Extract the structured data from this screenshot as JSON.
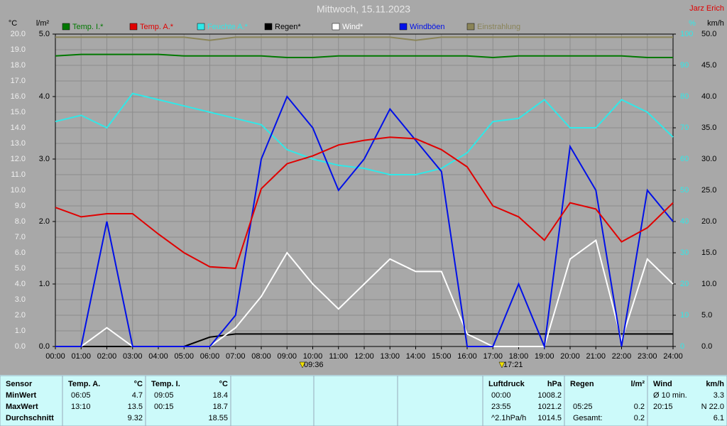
{
  "chart_data": {
    "type": "line",
    "title": "Mittwoch, 15.11.2023",
    "author": "Jarz Erich",
    "axis_units": {
      "y": "°C",
      "y4": "l/m²",
      "y2": "%",
      "y3": "km/h"
    },
    "x": [
      0,
      1,
      2,
      3,
      4,
      5,
      6,
      7,
      8,
      9,
      10,
      11,
      12,
      13,
      14,
      15,
      16,
      17,
      18,
      19,
      20,
      21,
      22,
      23,
      24
    ],
    "xlim": [
      0,
      24
    ],
    "xticks": [
      {
        "value": 0,
        "label": "00:00"
      },
      {
        "value": 1,
        "label": "01:00"
      },
      {
        "value": 2,
        "label": "02:00"
      },
      {
        "value": 3,
        "label": "03:00"
      },
      {
        "value": 4,
        "label": "04:00"
      },
      {
        "value": 5,
        "label": "05:00"
      },
      {
        "value": 6,
        "label": "06:00"
      },
      {
        "value": 7,
        "label": "07:00"
      },
      {
        "value": 8,
        "label": "08:00"
      },
      {
        "value": 9,
        "label": "09:00"
      },
      {
        "value": 10,
        "label": "10:00"
      },
      {
        "value": 11,
        "label": "11:00"
      },
      {
        "value": 12,
        "label": "12:00"
      },
      {
        "value": 13,
        "label": "13:00"
      },
      {
        "value": 14,
        "label": "14:00"
      },
      {
        "value": 15,
        "label": "15:00"
      },
      {
        "value": 16,
        "label": "16:00"
      },
      {
        "value": 17,
        "label": "17:00"
      },
      {
        "value": 18,
        "label": "18:00"
      },
      {
        "value": 19,
        "label": "19:00"
      },
      {
        "value": 20,
        "label": "20:00"
      },
      {
        "value": 21,
        "label": "21:00"
      },
      {
        "value": 22,
        "label": "22:00"
      },
      {
        "value": 23,
        "label": "23:00"
      },
      {
        "value": 24,
        "label": "24:00"
      }
    ],
    "ylim": [
      0,
      20
    ],
    "yticks": [
      {
        "value": 0,
        "label": "0.0"
      },
      {
        "value": 1,
        "label": "1.0"
      },
      {
        "value": 2,
        "label": "2.0"
      },
      {
        "value": 3,
        "label": "3.0"
      },
      {
        "value": 4,
        "label": "4.0"
      },
      {
        "value": 5,
        "label": "5.0"
      },
      {
        "value": 6,
        "label": "6.0"
      },
      {
        "value": 7,
        "label": "7.0"
      },
      {
        "value": 8,
        "label": "8.0"
      },
      {
        "value": 9,
        "label": "9.0"
      },
      {
        "value": 10,
        "label": "10.0"
      },
      {
        "value": 11,
        "label": "11.0"
      },
      {
        "value": 12,
        "label": "12.0"
      },
      {
        "value": 13,
        "label": "13.0"
      },
      {
        "value": 14,
        "label": "14.0"
      },
      {
        "value": 15,
        "label": "15.0"
      },
      {
        "value": 16,
        "label": "16.0"
      },
      {
        "value": 17,
        "label": "17.0"
      },
      {
        "value": 18,
        "label": "18.0"
      },
      {
        "value": 19,
        "label": "19.0"
      },
      {
        "value": 20,
        "label": "20.0"
      }
    ],
    "y4lim": [
      0,
      5
    ],
    "y4ticks": [
      {
        "value": 0,
        "label": "0.0"
      },
      {
        "value": 1,
        "label": "1.0"
      },
      {
        "value": 2,
        "label": "2.0"
      },
      {
        "value": 3,
        "label": "3.0"
      },
      {
        "value": 4,
        "label": "4.0"
      },
      {
        "value": 5,
        "label": "5.0"
      }
    ],
    "y2lim": [
      0,
      100
    ],
    "y2ticks": [
      0,
      10,
      20,
      30,
      40,
      50,
      60,
      70,
      80,
      90,
      100
    ],
    "y3lim": [
      0,
      50
    ],
    "y3ticks": [
      {
        "value": 0,
        "label": "0.0"
      },
      {
        "value": 5,
        "label": "5.0"
      },
      {
        "value": 10,
        "label": "10.0"
      },
      {
        "value": 15,
        "label": "15.0"
      },
      {
        "value": 20,
        "label": "20.0"
      },
      {
        "value": 25,
        "label": "25.0"
      },
      {
        "value": 30,
        "label": "30.0"
      },
      {
        "value": 35,
        "label": "35.0"
      },
      {
        "value": 40,
        "label": "40.0"
      },
      {
        "value": 45,
        "label": "45.0"
      },
      {
        "value": 50,
        "label": "50.0"
      }
    ],
    "grid": true,
    "series": [
      {
        "name": "Temp. I.*",
        "color": "#007800",
        "axis": "y",
        "values": [
          18.6,
          18.7,
          18.7,
          18.7,
          18.7,
          18.6,
          18.6,
          18.6,
          18.6,
          18.5,
          18.5,
          18.6,
          18.6,
          18.6,
          18.6,
          18.6,
          18.6,
          18.5,
          18.6,
          18.6,
          18.6,
          18.6,
          18.6,
          18.5,
          18.5
        ]
      },
      {
        "name": "Temp. A.*",
        "color": "#e00000",
        "axis": "y",
        "values": [
          8.9,
          8.3,
          8.5,
          8.5,
          7.2,
          6.0,
          5.1,
          5.0,
          10.1,
          11.7,
          12.2,
          12.9,
          13.2,
          13.4,
          13.3,
          12.6,
          11.5,
          9.0,
          8.3,
          6.8,
          9.2,
          8.8,
          6.7,
          7.6,
          9.2
        ]
      },
      {
        "name": "Feuchte A.*",
        "color": "#30e8e8",
        "axis": "y2",
        "values": [
          72,
          74,
          70,
          81,
          79,
          77,
          75,
          73,
          71,
          63,
          60,
          58,
          57,
          55,
          55,
          57,
          62,
          72,
          73,
          79,
          70,
          70,
          79,
          75,
          67
        ]
      },
      {
        "name": "Regen*",
        "color": "#000000",
        "axis": "y4",
        "values": [
          0,
          0,
          0,
          0,
          0,
          0,
          0.15,
          0.2,
          0.2,
          0.2,
          0.2,
          0.2,
          0.2,
          0.2,
          0.2,
          0.2,
          0.2,
          0.2,
          0.2,
          0.2,
          0.2,
          0.2,
          0.2,
          0.2,
          0.2
        ]
      },
      {
        "name": "Wind*",
        "color": "#ffffff",
        "axis": "y3",
        "values": [
          0,
          0,
          3,
          0,
          0,
          0,
          0,
          3,
          8,
          15,
          10,
          6,
          10,
          14,
          12,
          12,
          2,
          0,
          0,
          0,
          14,
          17,
          1,
          14,
          10
        ]
      },
      {
        "name": "Windböen",
        "color": "#0010e8",
        "axis": "y3",
        "values": [
          0,
          0,
          20,
          0,
          0,
          0,
          0,
          5,
          30,
          40,
          35,
          25,
          30,
          38,
          33,
          28,
          0,
          0,
          10,
          0,
          32,
          25,
          0,
          25,
          20
        ]
      },
      {
        "name": "Einstrahlung",
        "color": "#8a8458",
        "axis": "y2",
        "values": [
          99,
          99,
          99,
          99,
          99,
          99,
          98,
          99,
          99,
          99,
          99,
          99,
          99,
          99,
          98,
          99,
          99,
          99,
          99,
          99,
          99,
          99,
          99,
          99,
          99
        ]
      }
    ],
    "sun_markers": [
      {
        "label": "09:36",
        "x": 9.6
      },
      {
        "label": "17:21",
        "x": 17.35
      }
    ]
  },
  "table": {
    "sections": [
      {
        "header": [
          "Sensor"
        ],
        "rows": [
          [
            "MinWert"
          ],
          [
            "MaxWert"
          ],
          [
            "Durchschnitt"
          ]
        ]
      },
      {
        "header": [
          "Temp. A.",
          "°C"
        ],
        "rows": [
          [
            "06:05",
            "4.7"
          ],
          [
            "13:10",
            "13.5"
          ],
          [
            null,
            "9.32"
          ]
        ]
      },
      {
        "header": [
          "Temp. I.",
          "°C"
        ],
        "rows": [
          [
            "09:05",
            "18.4"
          ],
          [
            "00:15",
            "18.7"
          ],
          [
            null,
            "18.55"
          ]
        ]
      },
      {
        "header": [
          "Luftdruck",
          "hPa"
        ],
        "rows": [
          [
            "00:00",
            "1008.2"
          ],
          [
            "23:55",
            "1021.2"
          ],
          [
            "^2.1hPa/h",
            "1014.5"
          ]
        ]
      },
      {
        "header": [
          "Regen",
          "l/m²"
        ],
        "rows": [
          [
            null,
            null
          ],
          [
            "05:25",
            "0.2"
          ],
          [
            "Gesamt:",
            "0.2"
          ]
        ]
      },
      {
        "header": [
          "Wind",
          "km/h"
        ],
        "rows": [
          [
            "Ø 10 min.",
            "3.3"
          ],
          [
            "20:15",
            "N 22.0"
          ],
          [
            null,
            "6.1"
          ]
        ]
      }
    ]
  }
}
